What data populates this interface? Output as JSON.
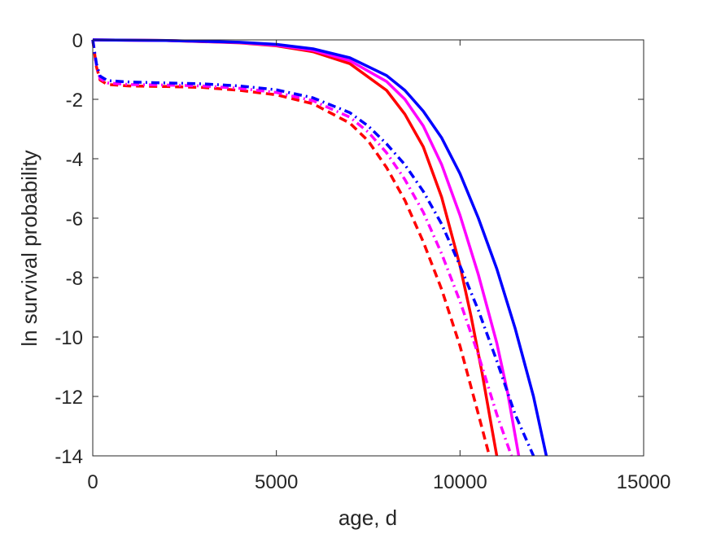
{
  "chart_data": {
    "type": "line",
    "xlabel": "age, d",
    "ylabel": "ln survival probability",
    "xlim": [
      0,
      15000
    ],
    "ylim": [
      -14,
      0
    ],
    "xticks": [
      0,
      5000,
      10000,
      15000
    ],
    "yticks": [
      0,
      -2,
      -4,
      -6,
      -8,
      -10,
      -12,
      -14
    ],
    "grid": false,
    "legend": "none",
    "series": [
      {
        "color": "#ff0000",
        "dash": "solid",
        "x": [
          0,
          2000,
          4000,
          5000,
          6000,
          7000,
          8000,
          8500,
          9000,
          9500,
          10000,
          10300,
          10600,
          10800,
          11000
        ],
        "y": [
          0,
          -0.02,
          -0.1,
          -0.2,
          -0.4,
          -0.8,
          -1.7,
          -2.5,
          -3.6,
          -5.3,
          -7.6,
          -9.3,
          -11.2,
          -12.6,
          -14
        ]
      },
      {
        "color": "#ff00ff",
        "dash": "solid",
        "x": [
          0,
          2000,
          4000,
          5000,
          6000,
          7000,
          8000,
          8500,
          9000,
          9500,
          10000,
          10500,
          11000,
          11300,
          11600
        ],
        "y": [
          0,
          -0.02,
          -0.09,
          -0.18,
          -0.35,
          -0.7,
          -1.4,
          -2.0,
          -2.9,
          -4.2,
          -5.9,
          -7.9,
          -10.2,
          -11.9,
          -14
        ]
      },
      {
        "color": "#0000ff",
        "dash": "solid",
        "x": [
          0,
          2000,
          4000,
          5000,
          6000,
          7000,
          8000,
          8500,
          9000,
          9500,
          10000,
          10500,
          11000,
          11500,
          12000,
          12350
        ],
        "y": [
          0,
          -0.02,
          -0.08,
          -0.15,
          -0.3,
          -0.6,
          -1.2,
          -1.7,
          -2.4,
          -3.3,
          -4.5,
          -6.0,
          -7.7,
          -9.7,
          -12.0,
          -14
        ]
      },
      {
        "color": "#ff0000",
        "dash": "dashed",
        "x": [
          0,
          100,
          200,
          400,
          1000,
          2000,
          3000,
          4000,
          5000,
          6000,
          7000,
          7500,
          8000,
          8500,
          9000,
          9500,
          10000,
          10500,
          10800
        ],
        "y": [
          0,
          -0.9,
          -1.35,
          -1.5,
          -1.55,
          -1.57,
          -1.6,
          -1.7,
          -1.85,
          -2.15,
          -2.8,
          -3.4,
          -4.3,
          -5.4,
          -6.8,
          -8.4,
          -10.3,
          -12.6,
          -14
        ]
      },
      {
        "color": "#ff00ff",
        "dash": "dashdot",
        "x": [
          0,
          100,
          200,
          400,
          1000,
          2000,
          3000,
          4000,
          5000,
          6000,
          7000,
          7500,
          8000,
          8500,
          9000,
          9500,
          10000,
          10500,
          11000,
          11400
        ],
        "y": [
          0,
          -0.85,
          -1.3,
          -1.45,
          -1.5,
          -1.52,
          -1.55,
          -1.63,
          -1.77,
          -2.05,
          -2.6,
          -3.1,
          -3.8,
          -4.7,
          -5.8,
          -7.2,
          -8.8,
          -10.6,
          -12.6,
          -14
        ]
      },
      {
        "color": "#0000ff",
        "dash": "dashdot",
        "x": [
          0,
          100,
          200,
          400,
          1000,
          2000,
          3000,
          4000,
          5000,
          6000,
          7000,
          7500,
          8000,
          8500,
          9000,
          9500,
          10000,
          10500,
          11000,
          11500,
          12000
        ],
        "y": [
          0,
          -0.8,
          -1.22,
          -1.37,
          -1.42,
          -1.45,
          -1.48,
          -1.55,
          -1.68,
          -1.95,
          -2.45,
          -2.9,
          -3.5,
          -4.2,
          -5.1,
          -6.2,
          -7.6,
          -9.1,
          -10.8,
          -12.6,
          -14
        ]
      }
    ]
  }
}
